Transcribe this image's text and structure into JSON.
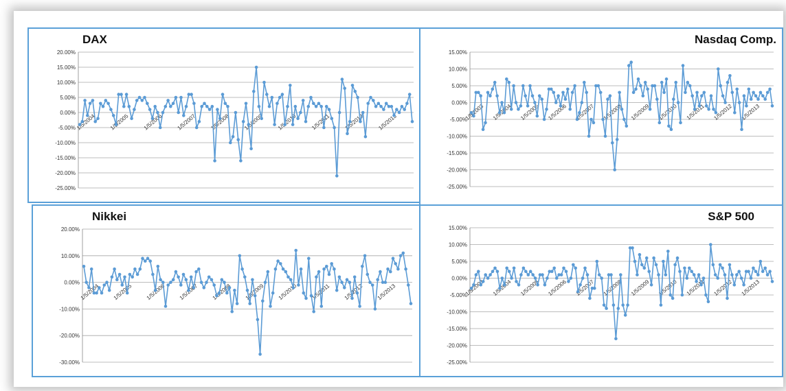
{
  "series_color": "#5b9bd5",
  "chart_data": [
    {
      "type": "line",
      "title": "DAX",
      "title_align": "left",
      "ylim": [
        -0.25,
        0.2
      ],
      "yticks": [
        0.2,
        0.15,
        0.1,
        0.05,
        0.0,
        -0.05,
        -0.1,
        -0.15,
        -0.2,
        -0.25
      ],
      "ytick_labels": [
        "20.00%",
        "15.00%",
        "10.00%",
        "5.00%",
        "0.00%",
        "-5.00%",
        "-10.00%",
        "-15.00%",
        "-20.00%",
        "-25.00%"
      ],
      "x_tick_labels": [
        "1/5/2004",
        "1/5/2005",
        "1/5/2006",
        "1/5/2007",
        "1/5/2008",
        "1/5/2009",
        "1/5/2010",
        "1/5/2011",
        "1/5/2012",
        "1/5/2013"
      ],
      "values": [
        -0.04,
        -0.03,
        0.04,
        -0.01,
        0.03,
        0.04,
        -0.03,
        -0.02,
        0.03,
        0.02,
        0.04,
        0.03,
        0.01,
        -0.01,
        -0.04,
        0.06,
        0.06,
        0.02,
        0.06,
        0.02,
        -0.02,
        0.01,
        0.04,
        0.05,
        0.04,
        0.05,
        0.03,
        0.01,
        -0.02,
        0.02,
        0.0,
        -0.05,
        0.0,
        0.02,
        0.04,
        0.02,
        0.03,
        0.05,
        0.0,
        0.05,
        -0.01,
        0.02,
        0.06,
        0.06,
        0.03,
        -0.05,
        -0.03,
        0.02,
        0.03,
        0.02,
        0.01,
        0.02,
        -0.16,
        0.01,
        -0.02,
        0.06,
        0.03,
        0.02,
        -0.1,
        -0.08,
        0.0,
        -0.09,
        -0.16,
        -0.03,
        0.03,
        -0.04,
        -0.12,
        0.07,
        0.15,
        0.02,
        -0.02,
        0.1,
        0.06,
        0.02,
        0.05,
        -0.04,
        0.03,
        0.05,
        0.06,
        -0.04,
        0.02,
        0.09,
        -0.04,
        0.02,
        -0.02,
        0.0,
        0.04,
        -0.03,
        0.02,
        0.05,
        0.03,
        0.02,
        0.03,
        0.02,
        -0.05,
        0.02,
        0.01,
        -0.02,
        -0.05,
        -0.21,
        0.0,
        0.11,
        0.08,
        -0.07,
        -0.03,
        0.09,
        0.07,
        0.05,
        -0.03,
        0.0,
        -0.08,
        0.03,
        0.05,
        0.04,
        0.02,
        0.03,
        0.02,
        0.01,
        0.03,
        0.02,
        0.02,
        -0.01,
        0.01,
        0.0,
        0.02,
        0.01,
        0.03,
        0.06,
        -0.03
      ]
    },
    {
      "type": "line",
      "title": "Nasdaq Comp.",
      "title_align": "right",
      "ylim": [
        -0.25,
        0.15
      ],
      "yticks": [
        0.15,
        0.1,
        0.05,
        0.0,
        -0.05,
        -0.1,
        -0.15,
        -0.2,
        -0.25
      ],
      "ytick_labels": [
        "15.00%",
        "10.00%",
        "5.00%",
        "0.00%",
        "-5.00%",
        "-10.00%",
        "-15.00%",
        "-20.00%",
        "-25.00%"
      ],
      "x_tick_labels": [
        "1/5/2003",
        "1/5/2004",
        "1/5/2005",
        "1/5/2006",
        "1/5/2007",
        "1/5/2008",
        "1/5/2009",
        "1/5/2010",
        "1/5/2011",
        "1/5/2012",
        "1/5/2013"
      ],
      "values": [
        -0.03,
        -0.04,
        0.03,
        0.03,
        0.02,
        -0.08,
        -0.06,
        0.03,
        0.02,
        0.04,
        0.06,
        0.02,
        -0.03,
        0.0,
        -0.03,
        0.07,
        0.06,
        -0.02,
        0.05,
        0.0,
        -0.02,
        -0.01,
        0.05,
        0.02,
        -0.01,
        0.05,
        0.02,
        0.0,
        -0.04,
        0.02,
        0.01,
        -0.05,
        -0.02,
        0.04,
        0.04,
        0.03,
        0.0,
        0.02,
        -0.01,
        0.03,
        0.01,
        0.04,
        -0.02,
        0.03,
        0.05,
        -0.05,
        -0.03,
        0.0,
        0.06,
        0.03,
        -0.1,
        -0.05,
        -0.06,
        0.05,
        0.05,
        0.03,
        -0.05,
        -0.1,
        0.01,
        0.02,
        -0.12,
        -0.2,
        -0.11,
        0.03,
        -0.02,
        -0.05,
        -0.07,
        0.11,
        0.12,
        0.03,
        0.04,
        0.07,
        0.05,
        0.02,
        0.06,
        0.04,
        -0.02,
        0.05,
        0.05,
        0.01,
        -0.06,
        0.06,
        0.03,
        0.07,
        -0.07,
        -0.08,
        0.01,
        0.06,
        0.0,
        -0.06,
        0.11,
        0.03,
        0.06,
        0.05,
        0.02,
        -0.02,
        0.03,
        -0.01,
        0.02,
        0.03,
        -0.01,
        -0.02,
        0.02,
        -0.02,
        -0.03,
        0.1,
        0.05,
        0.02,
        0.0,
        0.06,
        0.08,
        0.03,
        -0.03,
        0.04,
        0.0,
        -0.08,
        0.02,
        -0.01,
        0.04,
        0.01,
        0.03,
        0.02,
        0.01,
        0.03,
        0.02,
        0.01,
        0.03,
        0.04,
        -0.01
      ]
    },
    {
      "type": "line",
      "title": "Nikkei",
      "title_align": "left",
      "ylim": [
        -0.3,
        0.2
      ],
      "yticks": [
        0.2,
        0.1,
        0.0,
        -0.1,
        -0.2,
        -0.3
      ],
      "ytick_labels": [
        "20.00%",
        "10.00%",
        "0.00%",
        "-10.00%",
        "-20.00%",
        "-30.00%"
      ],
      "x_tick_labels": [
        "1/5/2004",
        "1/5/2005",
        "1/5/2006",
        "1/5/2007",
        "1/5/2008",
        "1/5/2009",
        "1/5/2010",
        "1/5/2011",
        "1/5/2012",
        "1/5/2013"
      ],
      "values": [
        0.06,
        0.0,
        -0.02,
        0.05,
        -0.04,
        -0.04,
        -0.02,
        -0.04,
        -0.01,
        0.0,
        -0.03,
        0.02,
        0.05,
        0.01,
        0.03,
        -0.01,
        0.02,
        -0.04,
        0.03,
        0.02,
        0.05,
        0.03,
        0.05,
        0.09,
        0.08,
        0.09,
        0.08,
        0.03,
        -0.03,
        0.06,
        0.01,
        0.0,
        -0.09,
        -0.01,
        0.0,
        0.01,
        0.04,
        0.02,
        -0.01,
        0.03,
        0.01,
        -0.03,
        0.02,
        -0.02,
        0.04,
        0.05,
        0.0,
        -0.02,
        0.0,
        0.02,
        0.01,
        -0.01,
        -0.05,
        -0.04,
        0.01,
        0.0,
        -0.04,
        -0.02,
        -0.11,
        -0.03,
        -0.08,
        0.1,
        0.05,
        0.02,
        -0.03,
        -0.08,
        0.01,
        -0.05,
        -0.14,
        -0.27,
        -0.07,
        0.0,
        0.04,
        -0.09,
        -0.04,
        0.05,
        0.08,
        0.07,
        0.05,
        0.04,
        0.02,
        0.01,
        -0.02,
        0.12,
        -0.01,
        0.05,
        -0.04,
        -0.06,
        0.09,
        -0.05,
        -0.11,
        0.02,
        0.04,
        -0.09,
        0.05,
        0.06,
        0.03,
        0.07,
        0.05,
        -0.03,
        0.02,
        0.0,
        -0.02,
        0.01,
        0.0,
        -0.06,
        0.02,
        -0.04,
        -0.09,
        0.06,
        0.1,
        0.03,
        0.0,
        -0.01,
        -0.1,
        0.01,
        0.04,
        0.0,
        0.0,
        0.05,
        0.04,
        0.09,
        0.07,
        0.05,
        0.1,
        0.11,
        0.05,
        -0.01,
        -0.08
      ]
    },
    {
      "type": "line",
      "title": "S&P 500",
      "title_align": "right",
      "ylim": [
        -0.25,
        0.15
      ],
      "yticks": [
        0.15,
        0.1,
        0.05,
        0.0,
        -0.05,
        -0.1,
        -0.15,
        -0.2,
        -0.25
      ],
      "ytick_labels": [
        "15.00%",
        "10.00%",
        "5.00%",
        "0.00%",
        "-5.00%",
        "-10.00%",
        "-15.00%",
        "-20.00%",
        "-25.00%"
      ],
      "x_tick_labels": [
        "1/5/2003",
        "1/5/2004",
        "1/5/2005",
        "1/5/2006",
        "1/5/2007",
        "1/5/2008",
        "1/5/2009",
        "1/5/2010",
        "1/5/2011",
        "1/5/2012",
        "1/5/2013"
      ],
      "values": [
        -0.03,
        -0.02,
        0.01,
        0.02,
        -0.02,
        -0.01,
        0.01,
        0.0,
        0.01,
        0.02,
        0.03,
        0.02,
        -0.03,
        0.0,
        -0.02,
        0.03,
        0.02,
        0.0,
        0.03,
        -0.01,
        -0.02,
        0.01,
        0.03,
        0.02,
        0.01,
        0.02,
        0.01,
        0.0,
        -0.02,
        0.01,
        0.01,
        -0.02,
        0.0,
        0.02,
        0.02,
        0.03,
        0.0,
        0.01,
        0.01,
        0.03,
        0.02,
        -0.01,
        0.0,
        0.04,
        0.03,
        -0.04,
        -0.02,
        0.0,
        0.03,
        0.01,
        -0.06,
        -0.03,
        -0.03,
        0.05,
        0.01,
        0.0,
        -0.08,
        -0.09,
        0.01,
        0.01,
        -0.08,
        -0.18,
        -0.09,
        0.01,
        -0.08,
        -0.11,
        -0.08,
        0.09,
        0.09,
        0.05,
        0.01,
        0.07,
        0.04,
        0.03,
        0.06,
        0.02,
        -0.02,
        0.06,
        0.04,
        0.01,
        -0.08,
        0.05,
        0.01,
        0.08,
        -0.05,
        -0.06,
        0.04,
        0.06,
        0.02,
        -0.05,
        0.03,
        0.0,
        0.03,
        0.02,
        0.01,
        -0.01,
        0.01,
        -0.02,
        0.0,
        -0.05,
        -0.07,
        0.1,
        0.04,
        0.01,
        0.0,
        0.04,
        0.03,
        0.01,
        -0.06,
        0.04,
        0.01,
        -0.02,
        0.01,
        0.02,
        0.0,
        -0.02,
        0.02,
        0.02,
        0.0,
        0.03,
        0.02,
        0.01,
        0.05,
        0.02,
        0.03,
        0.01,
        0.02,
        -0.01
      ]
    }
  ]
}
